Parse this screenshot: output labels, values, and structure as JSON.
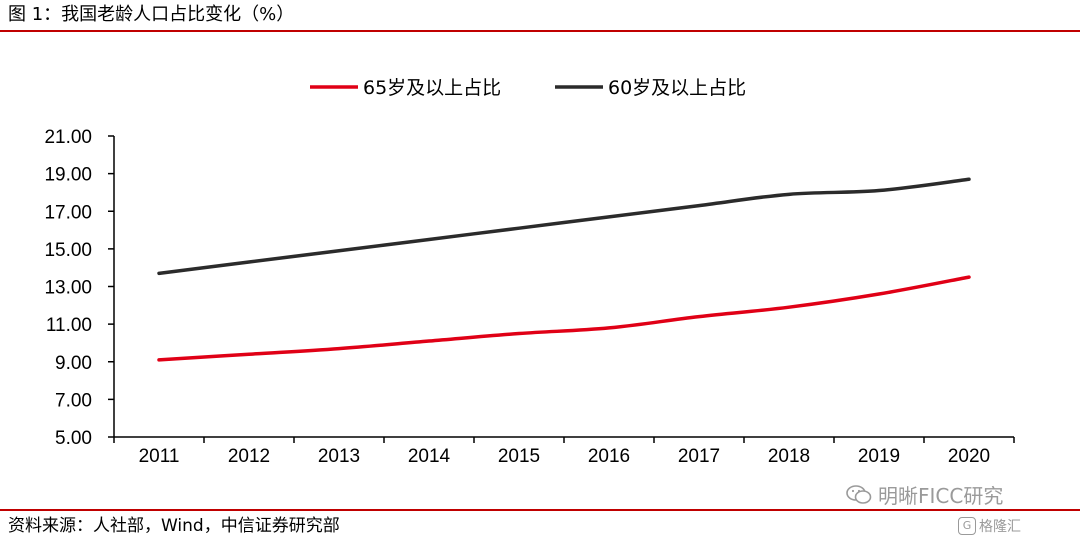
{
  "figure_title": "图 1：我国老龄人口占比变化（%）",
  "source": "资料来源：人社部，Wind，中信证券研究部",
  "watermark": {
    "primary": "明晰FICC研究",
    "secondary": "格隆汇",
    "secondary_icon": "gelonghui-logo-icon"
  },
  "colors": {
    "rule": "#c00000",
    "series_65": "#e00016",
    "series_60": "#2b2b2b"
  },
  "chart_data": {
    "type": "line",
    "title": "",
    "xlabel": "",
    "ylabel": "",
    "x": [
      "2011",
      "2012",
      "2013",
      "2014",
      "2015",
      "2016",
      "2017",
      "2018",
      "2019",
      "2020"
    ],
    "yticks": [
      "5.00",
      "7.00",
      "9.00",
      "11.00",
      "13.00",
      "15.00",
      "17.00",
      "19.00",
      "21.00"
    ],
    "ylim": [
      5,
      21
    ],
    "legend_position": "top-center",
    "grid": false,
    "series": [
      {
        "name": "65岁及以上占比",
        "color": "#e00016",
        "values": [
          9.1,
          9.4,
          9.7,
          10.1,
          10.5,
          10.8,
          11.4,
          11.9,
          12.6,
          13.5
        ]
      },
      {
        "name": "60岁及以上占比",
        "color": "#2b2b2b",
        "values": [
          13.7,
          14.3,
          14.9,
          15.5,
          16.1,
          16.7,
          17.3,
          17.9,
          18.1,
          18.7
        ]
      }
    ]
  }
}
